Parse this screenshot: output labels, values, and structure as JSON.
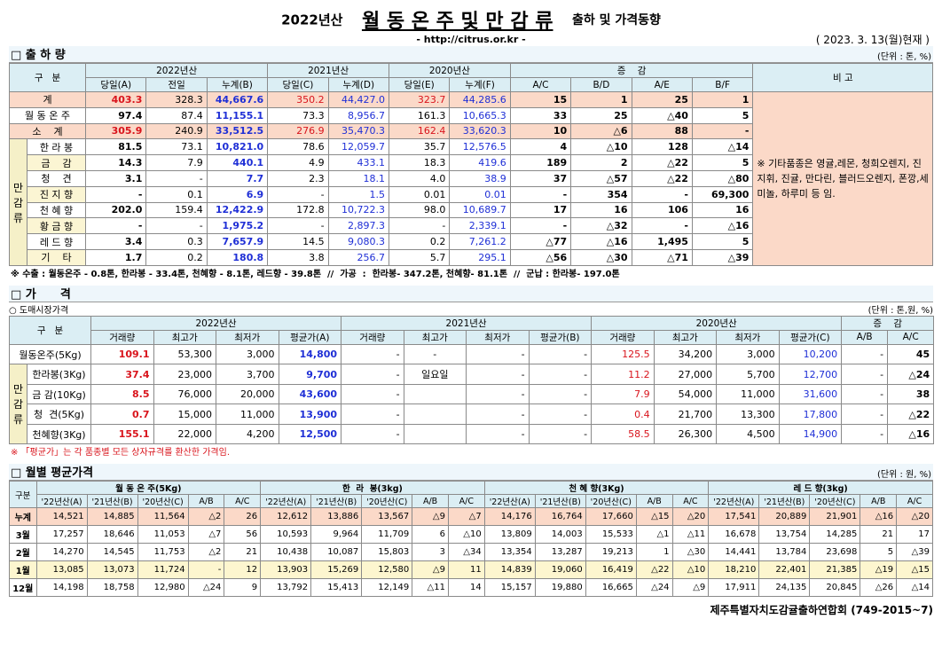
{
  "header": {
    "year": "2022년산",
    "title": "월 동 온 주 및 만 감 류",
    "subtitle": "출하 및 가격동향",
    "url": "- http://citrus.or.kr -",
    "date": "( 2023. 3. 13(월)현재 )"
  },
  "shipment": {
    "section": "□ 출 하 량",
    "unit": "(단위 : 톤, %)",
    "label_header": "구   분",
    "note_header": "비 고",
    "header_groups": [
      "2022년산",
      "2021년산",
      "2020년산",
      "증    감"
    ],
    "columns": [
      "당일(A)",
      "전일",
      "누계(B)",
      "당일(C)",
      "누계(D)",
      "당일(E)",
      "누계(F)",
      "A/C",
      "B/D",
      "A/E",
      "B/F"
    ],
    "group_label": "만 감 류",
    "rows": [
      {
        "label": "계",
        "values": [
          "403.3",
          "328.3",
          "44,667.6",
          "350.2",
          "44,427.0",
          "323.7",
          "44,285.6",
          "15",
          "1",
          "25",
          "1"
        ]
      },
      {
        "label": "월 동 온 주",
        "values": [
          "97.4",
          "87.4",
          "11,155.1",
          "73.3",
          "8,956.7",
          "161.3",
          "10,665.3",
          "33",
          "25",
          "△40",
          "5"
        ]
      },
      {
        "label": "소    계",
        "values": [
          "305.9",
          "240.9",
          "33,512.5",
          "276.9",
          "35,470.3",
          "162.4",
          "33,620.3",
          "10",
          "△6",
          "88",
          "-"
        ]
      },
      {
        "label": "한 라 봉",
        "values": [
          "81.5",
          "73.1",
          "10,821.0",
          "78.6",
          "12,059.7",
          "35.7",
          "12,576.5",
          "4",
          "△10",
          "128",
          "△14"
        ]
      },
      {
        "label": "금    감",
        "values": [
          "14.3",
          "7.9",
          "440.1",
          "4.9",
          "433.1",
          "18.3",
          "419.6",
          "189",
          "2",
          "△22",
          "5"
        ]
      },
      {
        "label": "청    견",
        "values": [
          "3.1",
          "-",
          "7.7",
          "2.3",
          "18.1",
          "4.0",
          "38.9",
          "37",
          "△57",
          "△22",
          "△80"
        ]
      },
      {
        "label": "진 지 향",
        "values": [
          "-",
          "0.1",
          "6.9",
          "-",
          "1.5",
          "0.01",
          "0.01",
          "-",
          "354",
          "-",
          "69,300"
        ]
      },
      {
        "label": "천 혜 향",
        "values": [
          "202.0",
          "159.4",
          "12,422.9",
          "172.8",
          "10,722.3",
          "98.0",
          "10,689.7",
          "17",
          "16",
          "106",
          "16"
        ]
      },
      {
        "label": "황 금 향",
        "values": [
          "-",
          "-",
          "1,975.2",
          "-",
          "2,897.3",
          "-",
          "2,339.1",
          "-",
          "△32",
          "-",
          "△16"
        ]
      },
      {
        "label": "레 드 향",
        "values": [
          "3.4",
          "0.3",
          "7,657.9",
          "14.5",
          "9,080.3",
          "0.2",
          "7,261.2",
          "△77",
          "△16",
          "1,495",
          "5"
        ]
      },
      {
        "label": "기    타",
        "values": [
          "1.7",
          "0.2",
          "180.8",
          "3.8",
          "256.7",
          "5.7",
          "295.1",
          "△56",
          "△30",
          "△71",
          "△39"
        ]
      }
    ],
    "note": "※ 기타품종은 영귤,레몬, 청희오렌지, 진지휘, 진귤, 만다린, 블러드오렌지, 폰깡,세미놀, 하루미 등 임.",
    "footnote": "※ 수출 : 월동온주 - 0.8톤, 한라봉 - 33.4톤, 천혜향 - 8.1톤, 레드향 - 39.8톤  //  가공  :  한라봉- 347.2톤, 천혜향- 81.1톤  //  군납 : 한라봉- 197.0톤"
  },
  "price": {
    "section": "□ 가      격",
    "subsection": "○ 도매시장가격",
    "unit": "(단위 : 톤,원, %)",
    "label_header": "구   분",
    "header_groups": [
      "2022년산",
      "2021년산",
      "2020년산",
      "증    감"
    ],
    "columns": [
      "거래량",
      "최고가",
      "최저가",
      "평균가(A)",
      "거래량",
      "최고가",
      "최저가",
      "평균가(B)",
      "거래량",
      "최고가",
      "최저가",
      "평균가(C)",
      "A/B",
      "A/C"
    ],
    "group_label": "만감류",
    "rows": [
      {
        "label": "월동온주(5Kg)",
        "values": [
          "109.1",
          "53,300",
          "3,000",
          "14,800",
          "-",
          "-",
          "-",
          "-",
          "125.5",
          "34,200",
          "3,000",
          "10,200",
          "-",
          "45"
        ]
      },
      {
        "label": "한라봉(3Kg)",
        "values": [
          "37.4",
          "23,000",
          "3,700",
          "9,700",
          "-",
          "일요일",
          "-",
          "-",
          "11.2",
          "27,000",
          "5,700",
          "12,700",
          "-",
          "△24"
        ]
      },
      {
        "label": "금 감(10Kg)",
        "values": [
          "8.5",
          "76,000",
          "20,000",
          "43,600",
          "-",
          null,
          "-",
          "-",
          "7.9",
          "54,000",
          "11,000",
          "31,600",
          "-",
          "38"
        ]
      },
      {
        "label": "청  견(5Kg)",
        "values": [
          "0.7",
          "15,000",
          "11,000",
          "13,900",
          "-",
          null,
          "-",
          "-",
          "0.4",
          "21,700",
          "13,300",
          "17,800",
          "-",
          "△22"
        ]
      },
      {
        "label": "천혜향(3Kg)",
        "values": [
          "155.1",
          "22,000",
          "4,200",
          "12,500",
          "-",
          null,
          "-",
          "-",
          "58.5",
          "26,300",
          "4,500",
          "14,900",
          "-",
          "△16"
        ]
      }
    ],
    "footnote": "※ 「평균가」는 각 품종별 모든 상자규격를 환산한 가격임."
  },
  "monthly": {
    "section": "□ 월별 평균가격",
    "unit": "(단위 : 원, %)",
    "label_header": "구분",
    "groups": [
      "월 동 온 주(5Kg)",
      "한  라  봉(3kg)",
      "천 혜 향(3Kg)",
      "레 드 향(3kg)"
    ],
    "subcolumns": [
      "'22년산(A)",
      "'21년산(B)",
      "'20년산(C)",
      "A/B",
      "A/C"
    ],
    "rows": [
      {
        "label": "누계",
        "values": [
          "14,521",
          "14,885",
          "11,564",
          "△2",
          "26",
          "12,612",
          "13,886",
          "13,567",
          "△9",
          "△7",
          "14,176",
          "16,764",
          "17,660",
          "△15",
          "△20",
          "17,541",
          "20,889",
          "21,901",
          "△16",
          "△20"
        ]
      },
      {
        "label": "3월",
        "values": [
          "17,257",
          "18,646",
          "11,053",
          "△7",
          "56",
          "10,593",
          "9,964",
          "11,709",
          "6",
          "△10",
          "13,809",
          "14,003",
          "15,533",
          "△1",
          "△11",
          "16,678",
          "13,754",
          "14,285",
          "21",
          "17"
        ]
      },
      {
        "label": "2월",
        "values": [
          "14,270",
          "14,545",
          "11,753",
          "△2",
          "21",
          "10,438",
          "10,087",
          "15,803",
          "3",
          "△34",
          "13,354",
          "13,287",
          "19,213",
          "1",
          "△30",
          "14,441",
          "13,784",
          "23,698",
          "5",
          "△39"
        ]
      },
      {
        "label": "1월",
        "values": [
          "13,085",
          "13,073",
          "11,724",
          "-",
          "12",
          "13,903",
          "15,269",
          "12,580",
          "△9",
          "11",
          "14,839",
          "19,060",
          "16,419",
          "△22",
          "△10",
          "18,210",
          "22,401",
          "21,385",
          "△19",
          "△15"
        ]
      },
      {
        "label": "12월",
        "values": [
          "14,198",
          "18,758",
          "12,980",
          "△24",
          "9",
          "13,792",
          "15,413",
          "12,149",
          "△11",
          "14",
          "15,157",
          "19,880",
          "16,665",
          "△24",
          "△9",
          "17,911",
          "24,135",
          "20,845",
          "△26",
          "△14"
        ]
      }
    ]
  },
  "footer": "제주특별자치도감귤출하연합회 (749-2015~7)"
}
